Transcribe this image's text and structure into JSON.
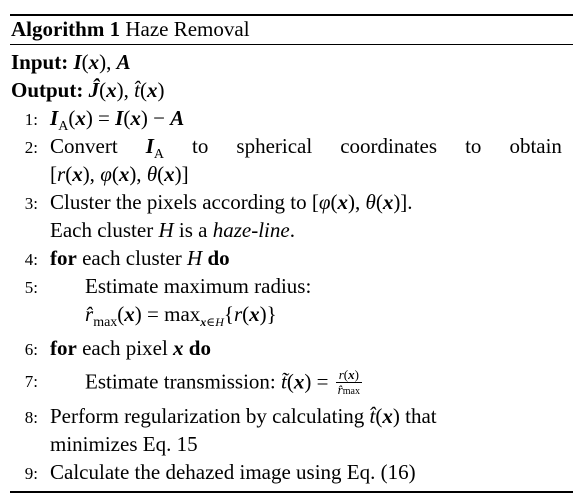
{
  "algorithm": {
    "label": "Algorithm 1",
    "title": "Haze Removal",
    "input_label": "Input:",
    "output_label": "Output:"
  },
  "steps": [
    {
      "num": "1:"
    },
    {
      "num": "2:",
      "text_a": "Convert",
      "text_b": "to",
      "text_c": "spherical",
      "text_d": "coordinates",
      "text_e": "to",
      "text_f": "obtain"
    },
    {
      "num": "3:",
      "text_a": "Cluster the pixels according to",
      "text_b": "Each cluster",
      "text_c": "is a",
      "text_d": "haze-line",
      "text_e": "."
    },
    {
      "num": "4:",
      "kw_for": "for",
      "text_a": "each cluster",
      "kw_do": "do"
    },
    {
      "num": "5:",
      "text_a": "Estimate maximum radius:"
    },
    {
      "num": "6:",
      "kw_for": "for",
      "text_a": "each pixel",
      "kw_do": "do"
    },
    {
      "num": "7:",
      "text_a": "Estimate transmission:"
    },
    {
      "num": "8:",
      "text_a": "Perform regularization by calculating",
      "text_b": "that",
      "text_c": "minimizes Eq. 15"
    },
    {
      "num": "9:",
      "text_a": "Calculate the dehazed image using Eq. (16)"
    }
  ]
}
